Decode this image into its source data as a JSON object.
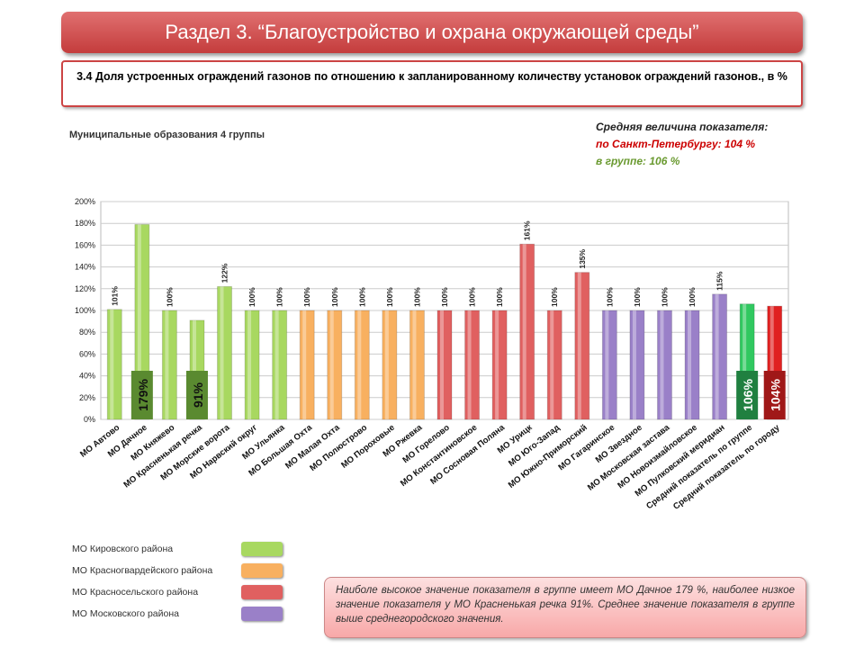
{
  "header": {
    "title": "Раздел 3. “Благоустройство и охрана окружающей среды”",
    "subtitle": "3.4 Доля устроенных ограждений газонов по отношению к запланированному количеству установок ограждений газонов., в %"
  },
  "group_label": "Муниципальные образования 4 группы",
  "average": {
    "title": "Средняя величина показателя:",
    "city": "по Санкт-Петербургу:  104 %",
    "group": "в группе:  106 %"
  },
  "legend": [
    {
      "label": "МО Кировского района",
      "color": "#a8d860"
    },
    {
      "label": "МО Красногвардейского района",
      "color": "#f8b060"
    },
    {
      "label": "МО Красносельского района",
      "color": "#e06060"
    },
    {
      "label": "МО Московского района",
      "color": "#9a80c8"
    }
  ],
  "note": "Наиболе высокое значение показателя в группе имеет МО Дачное 179 %, наиболее низкое значение показателя у МО Красненькая речка 91%. Среднее значение показателя в группе выше среднегородского значения.",
  "chart_data": {
    "type": "bar",
    "ylim": [
      0,
      200
    ],
    "yticks": [
      "0%",
      "20%",
      "40%",
      "60%",
      "80%",
      "100%",
      "120%",
      "140%",
      "160%",
      "180%",
      "200%"
    ],
    "grid": true,
    "categories": [
      "МО Автово",
      "МО Дачное",
      "МО Княжево",
      "МО Красненькая речка",
      "МО Морские ворота",
      "МО Нарвский округ",
      "МО Ульянка",
      "МО Большая Охта",
      "МО Малая Охта",
      "МО Полюстрово",
      "МО Пороховые",
      "МО Ржевка",
      "МО Горелово",
      "МО Константиновское",
      "МО Сосновая Поляна",
      "МО Урицк",
      "МО Юго-Запад",
      "МО Южно-Приморский",
      "МО Гагаринское",
      "МО Звездное",
      "МО Московская застава",
      "МО Новоизмайловское",
      "МО Пулковский меридиан",
      "Средний показатель по группе",
      "Средний показатель по городу"
    ],
    "values": [
      101,
      179,
      100,
      91,
      122,
      100,
      100,
      100,
      100,
      100,
      100,
      100,
      100,
      100,
      100,
      161,
      100,
      135,
      100,
      100,
      100,
      100,
      115,
      106,
      104
    ],
    "labels": [
      "101%",
      "179%",
      "100%",
      "91%",
      "122%",
      "100%",
      "100%",
      "100%",
      "100%",
      "100%",
      "100%",
      "100%",
      "100%",
      "100%",
      "100%",
      "161%",
      "100%",
      "135%",
      "100%",
      "100%",
      "100%",
      "100%",
      "115%",
      "106%",
      "104%"
    ],
    "colors": [
      "#a8d860",
      "#a8d860",
      "#a8d860",
      "#a8d860",
      "#a8d860",
      "#a8d860",
      "#a8d860",
      "#f8b060",
      "#f8b060",
      "#f8b060",
      "#f8b060",
      "#f8b060",
      "#e06060",
      "#e06060",
      "#e06060",
      "#e06060",
      "#e06060",
      "#e06060",
      "#9a80c8",
      "#9a80c8",
      "#9a80c8",
      "#9a80c8",
      "#9a80c8",
      "#30c860",
      "#e02020"
    ],
    "boxed_labels": {
      "1": "#5a8a30",
      "3": "#5a8a30",
      "23": "#208040",
      "24": "#a01818"
    }
  }
}
